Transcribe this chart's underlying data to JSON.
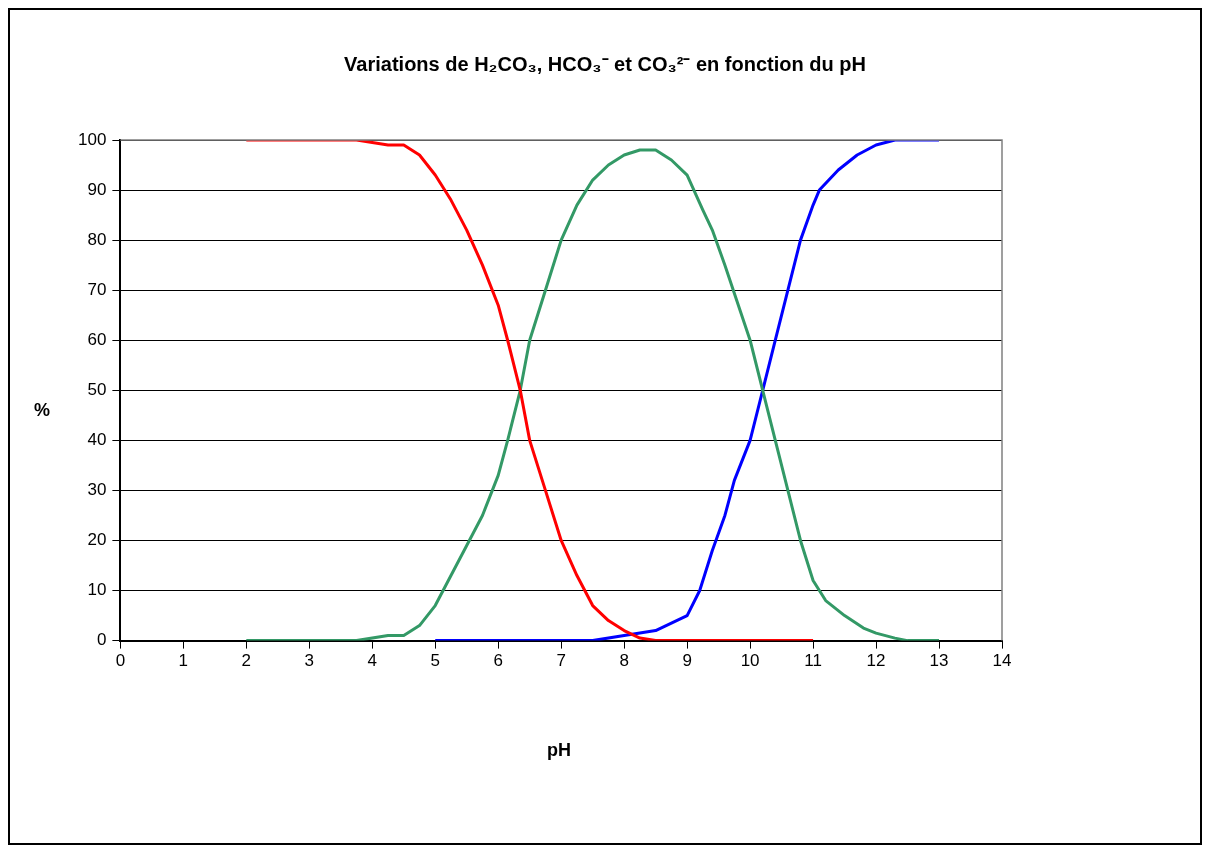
{
  "chart_data": {
    "type": "line",
    "title": "Variations de H₂CO₃, HCO₃⁻ et CO₃²⁻ en fonction du pH",
    "xlabel": "pH",
    "ylabel": "%",
    "xlim": [
      0,
      14
    ],
    "xticks": [
      0,
      1,
      2,
      3,
      4,
      5,
      6,
      7,
      8,
      9,
      10,
      11,
      12,
      13,
      14
    ],
    "ylim": [
      0,
      100
    ],
    "yticks": [
      0,
      10,
      20,
      30,
      40,
      50,
      60,
      70,
      80,
      90,
      100
    ],
    "grid": "y",
    "legend": false,
    "marker": "none",
    "line_style": "solid",
    "series": [
      {
        "color": "#ff0000",
        "x": [
          2,
          3.75,
          4.25,
          4.5,
          4.75,
          5,
          5.25,
          5.5,
          5.75,
          6,
          6.15,
          6.35,
          6.5,
          6.75,
          7,
          7.25,
          7.5,
          7.75,
          8,
          8.25,
          8.5,
          11
        ],
        "values": [
          100,
          100,
          99,
          99,
          97,
          93,
          88,
          82,
          75,
          67,
          60,
          50,
          40,
          30,
          20,
          13,
          7,
          4,
          2,
          0.5,
          0,
          0
        ]
      },
      {
        "color": "#339966",
        "x": [
          2,
          3.75,
          4.25,
          4.5,
          4.75,
          5,
          5.25,
          5.5,
          5.75,
          6,
          6.15,
          6.35,
          6.5,
          6.75,
          7,
          7.25,
          7.5,
          7.75,
          8,
          8.25,
          8.5,
          8.75,
          9,
          9.25,
          9.4,
          9.6,
          10,
          10.2,
          10.4,
          10.6,
          10.8,
          11,
          11.2,
          11.5,
          11.8,
          12,
          12.3,
          12.5,
          13
        ],
        "values": [
          0,
          0,
          1,
          1,
          3,
          7,
          13,
          19,
          25,
          33,
          40,
          50,
          60,
          70,
          80,
          87,
          92,
          95,
          97,
          98,
          98,
          96,
          93,
          86,
          82,
          75,
          60,
          50,
          40,
          30,
          20,
          12,
          8,
          5,
          2.5,
          1.5,
          0.5,
          0,
          0
        ]
      },
      {
        "color": "#0000ff",
        "x": [
          5,
          7.5,
          8,
          8.25,
          8.5,
          8.75,
          9,
          9.2,
          9.4,
          9.6,
          9.75,
          10,
          10.2,
          10.4,
          10.6,
          10.8,
          11,
          11.1,
          11.4,
          11.7,
          12,
          12.3,
          13
        ],
        "values": [
          0,
          0,
          1,
          1.5,
          2,
          3.5,
          5,
          10,
          18,
          25,
          32,
          40,
          50,
          60,
          70,
          80,
          87,
          90,
          94,
          97,
          99,
          100,
          100
        ]
      }
    ]
  }
}
